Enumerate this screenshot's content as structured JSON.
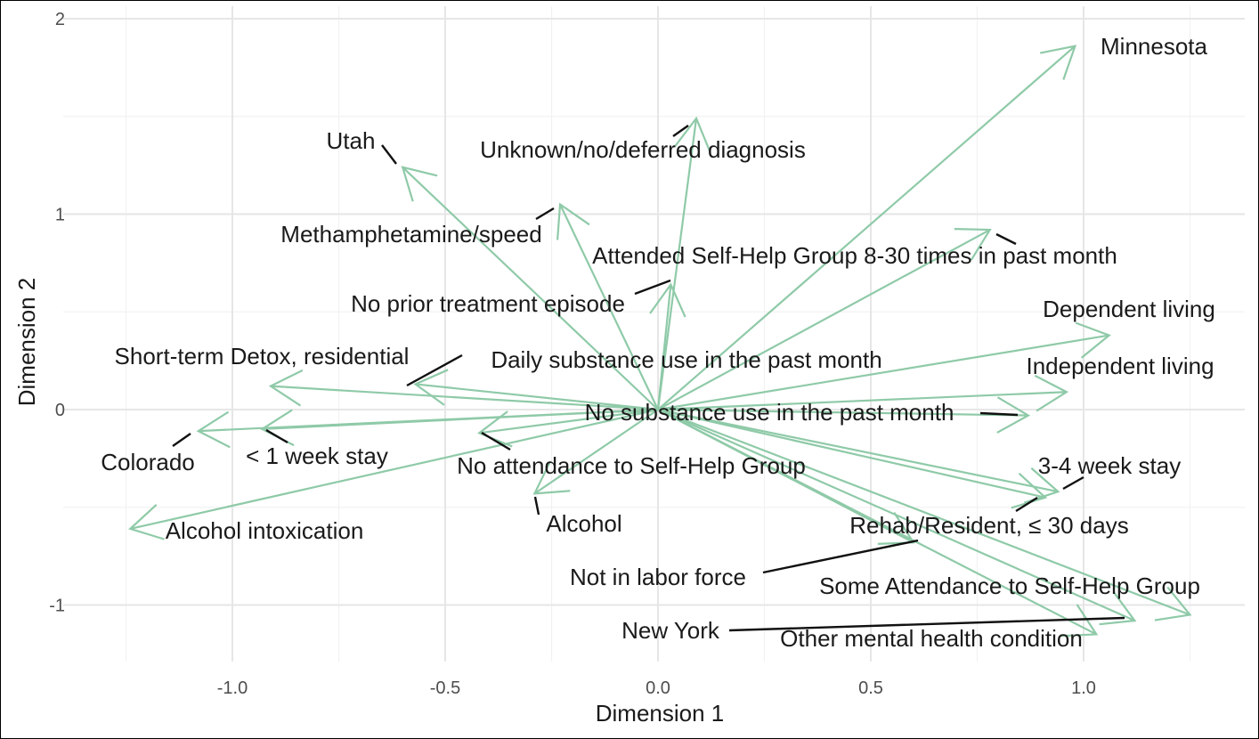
{
  "chart_data": {
    "type": "biplot",
    "xlabel": "Dimension 1",
    "ylabel": "Dimension 2",
    "xlim": [
      -1.25,
      1.38
    ],
    "ylim": [
      -1.29,
      2.0
    ],
    "x_ticks": [
      -1.0,
      -0.5,
      0.0,
      0.5,
      1.0
    ],
    "x_tick_labels": [
      "-1.0",
      "-0.5",
      "0.0",
      "0.5",
      "1.0"
    ],
    "y_ticks": [
      -1,
      0,
      1,
      2
    ],
    "y_tick_labels": [
      "-1",
      "0",
      "1",
      "2"
    ],
    "grid": true,
    "arrow_color": "#8fcaa8",
    "label_color": "#1a1a1a",
    "leader_color": "#111111",
    "vectors": [
      {
        "name": "Minnesota",
        "x": 0.98,
        "y": 1.86
      },
      {
        "name": "Unknown/no/deferred diagnosis",
        "x": 0.09,
        "y": 1.49
      },
      {
        "name": "Utah",
        "x": -0.6,
        "y": 1.24
      },
      {
        "name": "Methamphetamine/speed",
        "x": -0.23,
        "y": 1.05
      },
      {
        "name": "Attended Self-Help Group 8-30 times in past month",
        "x": 0.78,
        "y": 0.92
      },
      {
        "name": "No prior treatment episode",
        "x": 0.03,
        "y": 0.64
      },
      {
        "name": "Dependent living",
        "x": 1.06,
        "y": 0.38
      },
      {
        "name": "Short-term Detox, residential",
        "x": -0.91,
        "y": 0.12
      },
      {
        "name": "Daily substance use in the past month",
        "x": -0.57,
        "y": 0.13
      },
      {
        "name": "Independent living",
        "x": 0.96,
        "y": 0.09
      },
      {
        "name": "No substance use in the past month",
        "x": 0.87,
        "y": -0.03
      },
      {
        "name": "Colorado",
        "x": -1.08,
        "y": -0.11
      },
      {
        "name": "< 1 week stay",
        "x": -0.93,
        "y": -0.1
      },
      {
        "name": "No attendance to Self-Help Group",
        "x": -0.42,
        "y": -0.12
      },
      {
        "name": "Alcohol",
        "x": -0.29,
        "y": -0.43
      },
      {
        "name": "Alcohol intoxication",
        "x": -1.24,
        "y": -0.61
      },
      {
        "name": "3-4 week stay",
        "x": 0.94,
        "y": -0.42
      },
      {
        "name": "Rehab/Resident, ≤ 30 days",
        "x": 0.91,
        "y": -0.45
      },
      {
        "name": "Not in labor force",
        "x": 0.6,
        "y": -0.68
      },
      {
        "name": "Some Attendance to Self-Help Group",
        "x": 1.25,
        "y": -1.05
      },
      {
        "name": "New York",
        "x": 1.12,
        "y": -1.08
      },
      {
        "name": "Other mental health condition",
        "x": 1.03,
        "y": -1.15
      }
    ]
  }
}
